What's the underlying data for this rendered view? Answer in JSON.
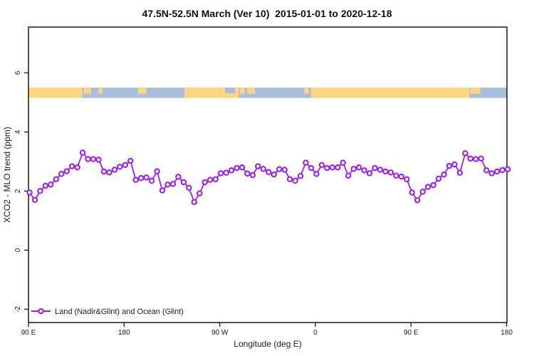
{
  "chart_data": {
    "type": "line",
    "title": "47.5N-52.5N March (Ver 10)  2015-01-01 to 2020-12-18",
    "xlabel": "Longitude (deg E)",
    "ylabel": "XCO2 - MLO trend (ppm)",
    "xlim": [
      90,
      540.3
    ],
    "ylim": [
      -2.45,
      7.55
    ],
    "grid": false,
    "axis_color": "#1a1a1a",
    "x_ticks": [
      {
        "value": 90,
        "label": "90 E"
      },
      {
        "value": 180,
        "label": "180"
      },
      {
        "value": 270,
        "label": "90 W"
      },
      {
        "value": 360,
        "label": "0"
      },
      {
        "value": 450,
        "label": "90 E"
      },
      {
        "value": 540,
        "label": "180"
      }
    ],
    "y_ticks": [
      {
        "value": -2,
        "label": "-2"
      },
      {
        "value": 0,
        "label": "0"
      },
      {
        "value": 2,
        "label": "2"
      },
      {
        "value": 4,
        "label": "4"
      },
      {
        "value": 6,
        "label": "6"
      }
    ],
    "x_start": 91,
    "x_step": 5,
    "series": [
      {
        "name": "Land (Nadir&Glint) and Ocean (Glint)",
        "color": "#A020F0",
        "marker": "open-circle",
        "values": [
          1.95,
          1.7,
          2.0,
          2.18,
          2.22,
          2.4,
          2.58,
          2.67,
          2.84,
          2.8,
          3.3,
          3.08,
          3.08,
          3.06,
          2.66,
          2.63,
          2.72,
          2.82,
          2.88,
          3.02,
          2.38,
          2.44,
          2.46,
          2.35,
          2.67,
          2.02,
          2.22,
          2.24,
          2.48,
          2.3,
          2.11,
          1.63,
          1.92,
          2.3,
          2.38,
          2.4,
          2.6,
          2.62,
          2.7,
          2.78,
          2.8,
          2.59,
          2.54,
          2.84,
          2.75,
          2.64,
          2.56,
          2.74,
          2.72,
          2.4,
          2.35,
          2.51,
          2.96,
          2.78,
          2.58,
          2.88,
          2.78,
          2.8,
          2.8,
          2.96,
          2.52,
          2.75,
          2.8,
          2.7,
          2.6,
          2.78,
          2.72,
          2.66,
          2.63,
          2.52,
          2.49,
          2.4,
          1.95,
          1.69,
          1.98,
          2.14,
          2.2,
          2.42,
          2.56,
          2.85,
          2.9,
          2.62,
          3.28,
          3.1,
          3.08,
          3.1,
          2.7,
          2.6,
          2.66,
          2.71,
          2.74
        ]
      }
    ],
    "legend": {
      "position": "bottom-left",
      "label": "Land (Nadir&Glint) and Ocean (Glint)"
    },
    "land_ocean_strip": {
      "description": "land/ocean mask strip for 47.5N-52.5N",
      "y_range_ppm": [
        5.15,
        5.5
      ],
      "land_color": "#FFD680",
      "ocean_color": "#A8BEDC",
      "segments": [
        {
          "surface": "land",
          "from_lon": 90,
          "to_lon": 140.5
        },
        {
          "surface": "ocean",
          "from_lon": 140.5,
          "to_lon": 237
        },
        {
          "surface": "land",
          "from_lon": 237,
          "to_lon": 288
        },
        {
          "surface": "ocean",
          "from_lon": 288,
          "to_lon": 356
        },
        {
          "surface": "land",
          "from_lon": 356,
          "to_lon": 505
        },
        {
          "surface": "ocean",
          "from_lon": 505,
          "to_lon": 540.3
        }
      ],
      "island_patches": [
        [
          142,
          149
        ],
        [
          156,
          159.5
        ],
        [
          193,
          201
        ],
        [
          289,
          293.5
        ],
        [
          296,
          303
        ],
        [
          349.5,
          353.5
        ],
        [
          506,
          515
        ]
      ],
      "inlet_patches": [
        [
          275,
          284.5
        ]
      ]
    }
  }
}
